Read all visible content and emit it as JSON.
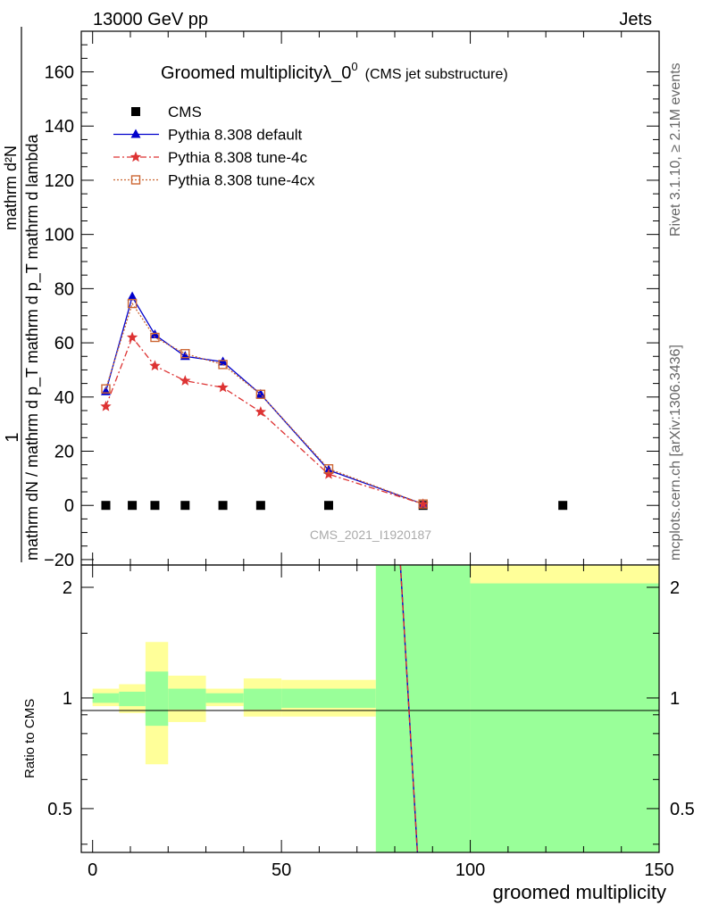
{
  "header": {
    "left": "13000 GeV pp",
    "right": "Jets"
  },
  "side_labels": {
    "rivet": "Rivet 3.1.10, ≥ 2.1M events",
    "mcplots": "mcplots.cern.ch [arXiv:1306.3436]"
  },
  "watermark": "CMS_2021_I1920187",
  "colors": {
    "cms": "#000000",
    "default": "#0000cc",
    "tune4c": "#dd3333",
    "tune4cx": "#cc6633",
    "band_inner": "#99ff99",
    "band_outer": "#ffff99"
  },
  "chart_data": [
    {
      "type": "line",
      "title": "Groomed multiplicityλ_0",
      "title_sup": "0",
      "title_suffix": "(CMS jet substructure)",
      "ylabel_top": "1",
      "ylabel_main": "mathrm dN / mathrm d p_T mathrm d p_T mathrm d lambda",
      "ylabel_num": "mathrm d²N",
      "ylim": [
        -22,
        175
      ],
      "yticks": [
        "−20",
        "0",
        "20",
        "40",
        "60",
        "80",
        "100",
        "120",
        "140",
        "160"
      ],
      "yticks_values": [
        -20,
        0,
        20,
        40,
        60,
        80,
        100,
        120,
        140,
        160
      ],
      "xlim": [
        -3,
        150
      ],
      "legend_position": "top-left",
      "series": [
        {
          "name": "CMS",
          "marker": "square",
          "x": [
            3.5,
            10.5,
            16.5,
            24.5,
            34.5,
            44.5,
            62.5,
            87.5,
            124.5
          ],
          "y": [
            0,
            0,
            0,
            0,
            0,
            0,
            0,
            0,
            0
          ]
        },
        {
          "name": "Pythia 8.308 default",
          "marker": "triangle",
          "x": [
            3.5,
            10.5,
            16.5,
            24.5,
            34.5,
            44.5,
            62.5,
            87.5
          ],
          "y": [
            42,
            77,
            63,
            55,
            53,
            41,
            13,
            0.5
          ]
        },
        {
          "name": "Pythia 8.308 tune-4c",
          "marker": "star",
          "x": [
            3.5,
            10.5,
            16.5,
            24.5,
            34.5,
            44.5,
            62.5,
            87.5
          ],
          "y": [
            36.5,
            62,
            51.5,
            46,
            43.5,
            34.5,
            11.5,
            0.5
          ]
        },
        {
          "name": "Pythia 8.308 tune-4cx",
          "marker": "open-square",
          "x": [
            3.5,
            10.5,
            16.5,
            24.5,
            34.5,
            44.5,
            62.5,
            87.5
          ],
          "y": [
            43,
            74.5,
            62,
            56,
            52,
            41,
            13.5,
            0.5
          ]
        }
      ]
    },
    {
      "type": "area",
      "ylabel": "Ratio to CMS",
      "xlabel": "groomed multiplicity",
      "ylim": [
        0.38,
        2.3
      ],
      "xlim": [
        -3,
        150
      ],
      "scale": "log",
      "yticks": [
        "0.5",
        "1",
        "2"
      ],
      "yticks_values": [
        0.5,
        1,
        2
      ],
      "xticks": [
        "0",
        "50",
        "100",
        "150"
      ],
      "xticks_values": [
        0,
        50,
        100,
        150
      ],
      "bands": [
        {
          "x0": 0,
          "x1": 7,
          "inner": [
            0.97,
            1.03
          ],
          "outer": [
            0.95,
            1.06
          ]
        },
        {
          "x0": 7,
          "x1": 14,
          "inner": [
            0.95,
            1.04
          ],
          "outer": [
            0.91,
            1.09
          ]
        },
        {
          "x0": 14,
          "x1": 20,
          "inner": [
            0.84,
            1.18
          ],
          "outer": [
            0.66,
            1.42
          ]
        },
        {
          "x0": 20,
          "x1": 30,
          "inner": [
            0.93,
            1.06
          ],
          "outer": [
            0.86,
            1.15
          ]
        },
        {
          "x0": 30,
          "x1": 40,
          "inner": [
            0.97,
            1.03
          ],
          "outer": [
            0.95,
            1.06
          ]
        },
        {
          "x0": 40,
          "x1": 50,
          "inner": [
            0.93,
            1.06
          ],
          "outer": [
            0.89,
            1.13
          ]
        },
        {
          "x0": 50,
          "x1": 75,
          "inner": [
            0.94,
            1.06
          ],
          "outer": [
            0.89,
            1.12
          ]
        },
        {
          "x0": 75,
          "x1": 100,
          "inner": [
            0.38,
            2.3
          ],
          "outer": [
            0.38,
            2.3
          ]
        },
        {
          "x0": 100,
          "x1": 150,
          "inner": [
            0.38,
            2.05
          ],
          "outer": [
            0.38,
            2.3
          ]
        }
      ],
      "ratio_lines": [
        {
          "name": "Pythia 8.308 default",
          "x": [
            81.5,
            86
          ],
          "y": [
            2.3,
            0.38
          ]
        },
        {
          "name": "Pythia 8.308 tune-4c",
          "x": [
            81.5,
            86
          ],
          "y": [
            2.3,
            0.38
          ]
        }
      ]
    }
  ]
}
